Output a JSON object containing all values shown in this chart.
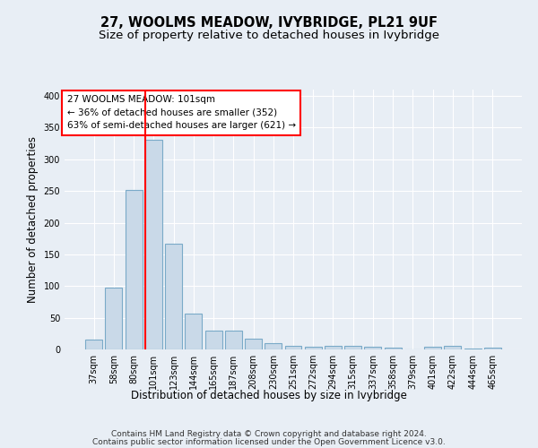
{
  "title": "27, WOOLMS MEADOW, IVYBRIDGE, PL21 9UF",
  "subtitle": "Size of property relative to detached houses in Ivybridge",
  "xlabel": "Distribution of detached houses by size in Ivybridge",
  "ylabel": "Number of detached properties",
  "categories": [
    "37sqm",
    "58sqm",
    "80sqm",
    "101sqm",
    "123sqm",
    "144sqm",
    "165sqm",
    "187sqm",
    "208sqm",
    "230sqm",
    "251sqm",
    "272sqm",
    "294sqm",
    "315sqm",
    "337sqm",
    "358sqm",
    "379sqm",
    "401sqm",
    "422sqm",
    "444sqm",
    "465sqm"
  ],
  "values": [
    15,
    97,
    251,
    331,
    167,
    57,
    29,
    29,
    17,
    10,
    6,
    4,
    5,
    5,
    4,
    3,
    0,
    4,
    6,
    1,
    3
  ],
  "bar_color": "#c9d9e8",
  "bar_edge_color": "#7aaac8",
  "red_line_index": 3,
  "annotation_text": "27 WOOLMS MEADOW: 101sqm\n← 36% of detached houses are smaller (352)\n63% of semi-detached houses are larger (621) →",
  "annotation_box_color": "white",
  "annotation_box_edge": "red",
  "ylim": [
    0,
    410
  ],
  "yticks": [
    0,
    50,
    100,
    150,
    200,
    250,
    300,
    350,
    400
  ],
  "background_color": "#e8eef5",
  "plot_background_color": "#e8eef5",
  "footer_line1": "Contains HM Land Registry data © Crown copyright and database right 2024.",
  "footer_line2": "Contains public sector information licensed under the Open Government Licence v3.0.",
  "title_fontsize": 10.5,
  "subtitle_fontsize": 9.5,
  "xlabel_fontsize": 8.5,
  "ylabel_fontsize": 8.5,
  "tick_fontsize": 7,
  "annotation_fontsize": 7.5,
  "footer_fontsize": 6.5,
  "bar_width": 0.85
}
